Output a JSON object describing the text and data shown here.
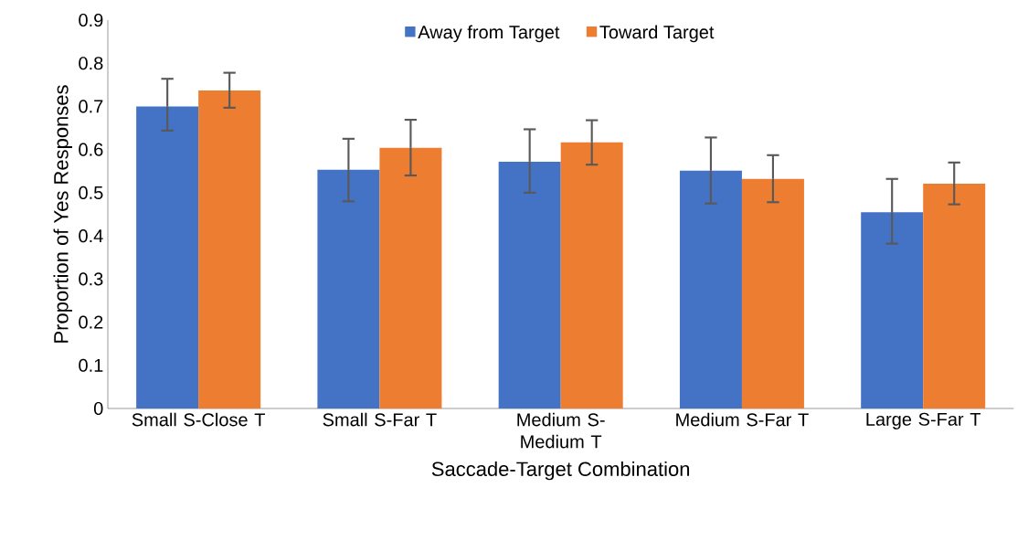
{
  "chart_data": {
    "type": "bar",
    "xlabel": "Saccade-Target Combination",
    "ylabel": "Proportion of Yes Responses",
    "categories": [
      "Small S-Close T",
      "Small S-Far T",
      "Medium S-Medium T",
      "Medium S-Far T",
      "Large S-Far T"
    ],
    "series": [
      {
        "name": "Away from Target",
        "color": "#4472c4",
        "values": [
          0.7,
          0.553,
          0.572,
          0.551,
          0.455
        ],
        "errors": [
          [
            0.644,
            0.764
          ],
          [
            0.48,
            0.625
          ],
          [
            0.5,
            0.647
          ],
          [
            0.475,
            0.628
          ],
          [
            0.382,
            0.532
          ]
        ]
      },
      {
        "name": "Toward Target",
        "color": "#ed7d31",
        "values": [
          0.737,
          0.604,
          0.617,
          0.532,
          0.521
        ],
        "errors": [
          [
            0.697,
            0.778
          ],
          [
            0.54,
            0.669
          ],
          [
            0.565,
            0.668
          ],
          [
            0.478,
            0.587
          ],
          [
            0.473,
            0.57
          ]
        ]
      }
    ],
    "ylim": [
      0,
      0.9
    ],
    "yticks": [
      0,
      0.1,
      0.2,
      0.3,
      0.4,
      0.5,
      0.6,
      0.7,
      0.8,
      0.9
    ],
    "grid": false,
    "legend": "top"
  }
}
